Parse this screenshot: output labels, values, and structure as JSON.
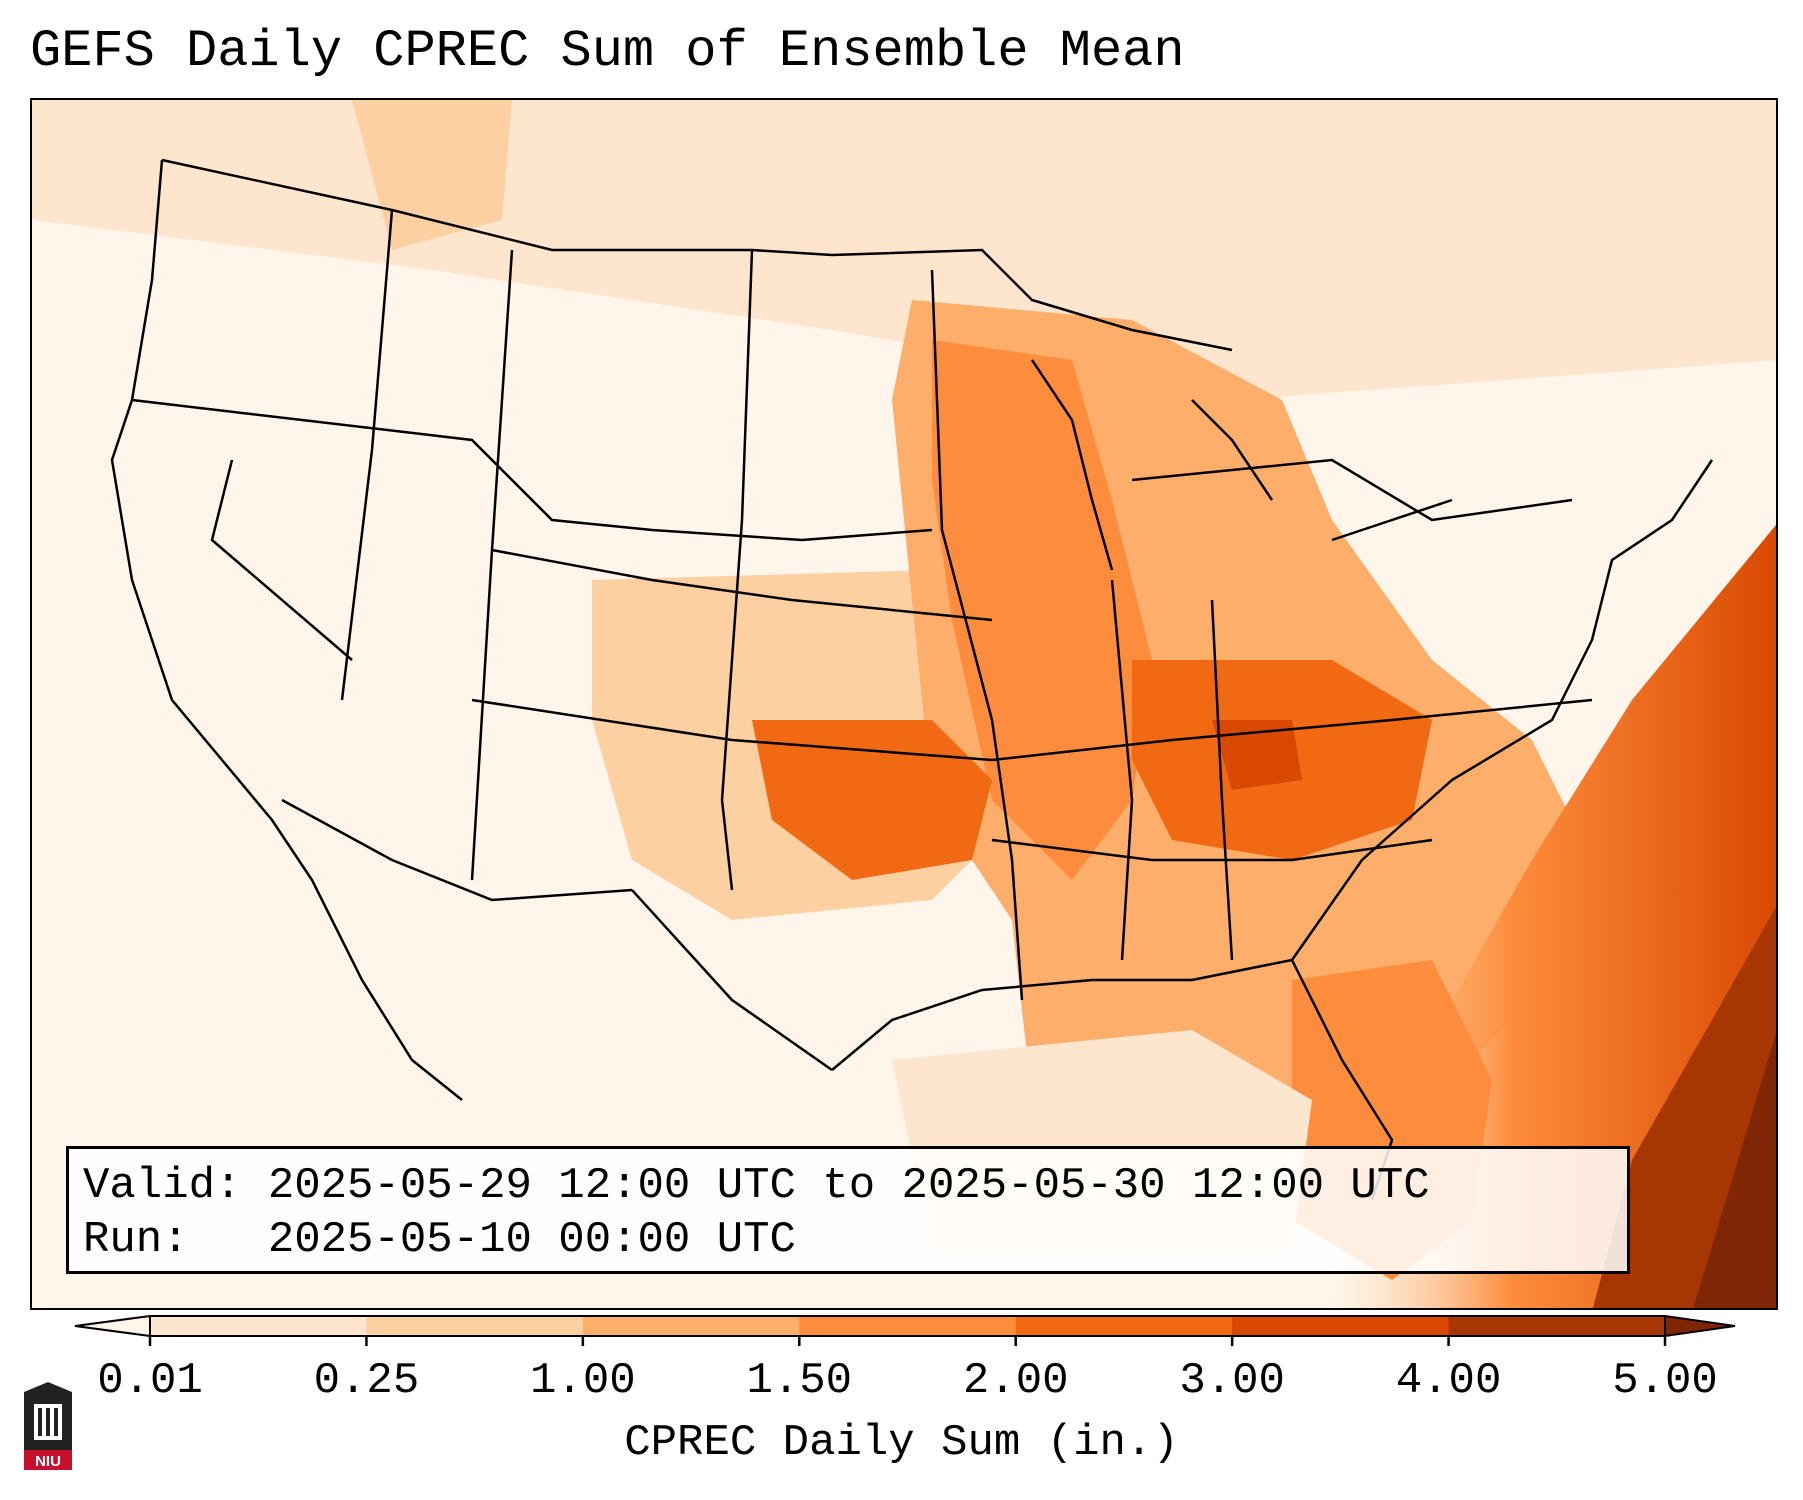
{
  "title": "GEFS Daily CPREC Sum of Ensemble Mean",
  "info": {
    "valid_label": "Valid:",
    "valid_value": "2025-05-29 12:00 UTC to 2025-05-30 12:00 UTC",
    "run_label": "Run:",
    "run_value": "2025-05-10 00:00 UTC"
  },
  "colorbar": {
    "label": "CPREC Daily Sum (in.)",
    "ticks": [
      "0.01",
      "0.25",
      "1.00",
      "1.50",
      "2.00",
      "3.00",
      "4.00",
      "5.00"
    ],
    "colors": [
      "#fff5eb",
      "#fee6ce",
      "#fdd0a2",
      "#fdae6b",
      "#fd8d3c",
      "#f16913",
      "#d94801",
      "#a63603",
      "#7f2704"
    ]
  },
  "logo": {
    "text": "NIU",
    "color": "#c8102e"
  }
}
